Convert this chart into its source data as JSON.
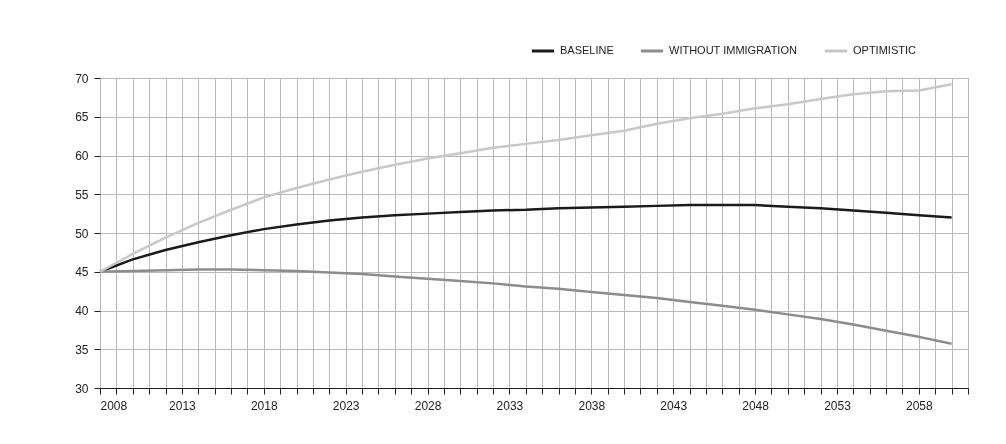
{
  "chart_data": {
    "type": "line",
    "x": [
      2008,
      2010,
      2012,
      2014,
      2016,
      2018,
      2020,
      2022,
      2024,
      2026,
      2028,
      2030,
      2032,
      2034,
      2036,
      2038,
      2040,
      2042,
      2044,
      2046,
      2048,
      2050,
      2052,
      2054,
      2056,
      2058,
      2060
    ],
    "series": [
      {
        "name": "BASELINE",
        "color": "#1a1a1a",
        "values": [
          45,
          46.6,
          47.8,
          48.8,
          49.7,
          50.5,
          51.1,
          51.6,
          52.0,
          52.3,
          52.5,
          52.7,
          52.9,
          53.0,
          53.2,
          53.3,
          53.4,
          53.5,
          53.6,
          53.6,
          53.6,
          53.4,
          53.2,
          52.9,
          52.6,
          52.3,
          52.0
        ]
      },
      {
        "name": "WITHOUT IMMIGRATION",
        "color": "#8c8c8c",
        "values": [
          45,
          45.1,
          45.2,
          45.3,
          45.3,
          45.2,
          45.1,
          44.9,
          44.7,
          44.4,
          44.1,
          43.8,
          43.5,
          43.1,
          42.8,
          42.4,
          42.0,
          41.6,
          41.1,
          40.6,
          40.1,
          39.5,
          38.9,
          38.2,
          37.4,
          36.6,
          35.7
        ]
      },
      {
        "name": "OPTIMISTIC",
        "color": "#c8c8c8",
        "values": [
          45,
          47.3,
          49.4,
          51.3,
          53.0,
          54.6,
          55.8,
          56.9,
          57.9,
          58.8,
          59.6,
          60.3,
          61.0,
          61.5,
          62.0,
          62.6,
          63.2,
          64.1,
          64.8,
          65.4,
          66.1,
          66.6,
          67.3,
          67.9,
          68.3,
          68.4,
          69.2
        ]
      }
    ],
    "xlim": [
      2008,
      2061
    ],
    "xticks": [
      2008,
      {
        "value": 2009,
        "label": null
      },
      {
        "value": 2010,
        "label": null
      },
      {
        "value": 2011,
        "label": null
      },
      {
        "value": 2012,
        "label": null
      },
      2013,
      {
        "value": 2014,
        "label": null
      },
      {
        "value": 2015,
        "label": null
      },
      {
        "value": 2016,
        "label": null
      },
      {
        "value": 2017,
        "label": null
      },
      2018,
      {
        "value": 2019,
        "label": null
      },
      {
        "value": 2020,
        "label": null
      },
      {
        "value": 2021,
        "label": null
      },
      {
        "value": 2022,
        "label": null
      },
      2023,
      {
        "value": 2024,
        "label": null
      },
      {
        "value": 2025,
        "label": null
      },
      {
        "value": 2026,
        "label": null
      },
      {
        "value": 2027,
        "label": null
      },
      2028,
      {
        "value": 2029,
        "label": null
      },
      {
        "value": 2030,
        "label": null
      },
      {
        "value": 2031,
        "label": null
      },
      {
        "value": 2032,
        "label": null
      },
      2033,
      {
        "value": 2034,
        "label": null
      },
      {
        "value": 2035,
        "label": null
      },
      {
        "value": 2036,
        "label": null
      },
      {
        "value": 2037,
        "label": null
      },
      2038,
      {
        "value": 2039,
        "label": null
      },
      {
        "value": 2040,
        "label": null
      },
      {
        "value": 2041,
        "label": null
      },
      {
        "value": 2042,
        "label": null
      },
      2043,
      {
        "value": 2044,
        "label": null
      },
      {
        "value": 2045,
        "label": null
      },
      {
        "value": 2046,
        "label": null
      },
      {
        "value": 2047,
        "label": null
      },
      2048,
      {
        "value": 2049,
        "label": null
      },
      {
        "value": 2050,
        "label": null
      },
      {
        "value": 2051,
        "label": null
      },
      {
        "value": 2052,
        "label": null
      },
      2053,
      {
        "value": 2054,
        "label": null
      },
      {
        "value": 2055,
        "label": null
      },
      {
        "value": 2056,
        "label": null
      },
      {
        "value": 2057,
        "label": null
      },
      2058,
      {
        "value": 2059,
        "label": null
      },
      {
        "value": 2060,
        "label": null
      },
      {
        "value": 2061,
        "label": null
      }
    ],
    "ylim": [
      30,
      70
    ],
    "yticks": [
      30,
      35,
      40,
      45,
      50,
      55,
      60,
      65,
      70
    ],
    "grid": true,
    "legend": "top right",
    "marker": "none",
    "line_style": "solid"
  }
}
